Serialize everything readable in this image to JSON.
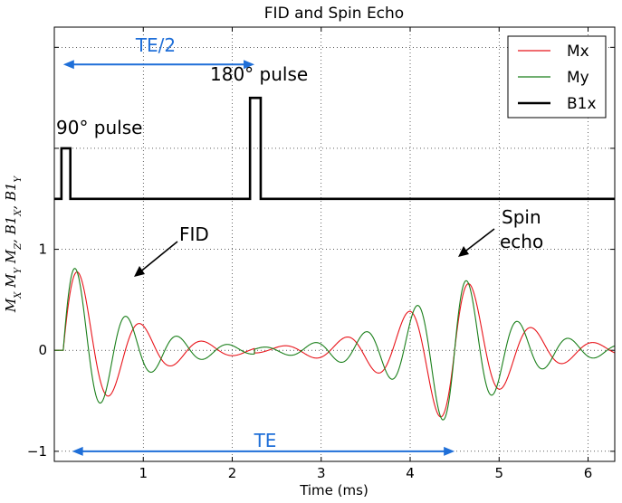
{
  "chart_data": {
    "type": "line",
    "title": "FID and Spin Echo",
    "xlabel": "Time (ms)",
    "ylabel": "M_X  M_Y  M_Z , B1_X , B1_Y",
    "ylabel_parts": [
      "M",
      "X",
      " M",
      "Y",
      " M",
      "Z",
      ", B1",
      "X",
      ", B1",
      "Y"
    ],
    "xlim": [
      0,
      6.3
    ],
    "ylim": [
      -1.1,
      3.2
    ],
    "grid": true,
    "legend_position": "top-right",
    "x_ticks": [
      {
        "value": 1,
        "label": "1"
      },
      {
        "value": 2,
        "label": "2"
      },
      {
        "value": 3,
        "label": "3"
      },
      {
        "value": 4,
        "label": "4"
      },
      {
        "value": 5,
        "label": "5"
      },
      {
        "value": 6,
        "label": "6"
      }
    ],
    "y_ticks": [
      {
        "value": -1,
        "label": "−1"
      },
      {
        "value": 0,
        "label": "0"
      },
      {
        "value": 1,
        "label": "1"
      }
    ],
    "y_grid_only": [
      2,
      3
    ],
    "series": [
      {
        "name": "Mx",
        "color": "#e8141a",
        "width": 1.1
      },
      {
        "name": "My",
        "color": "#1a7f1a",
        "width": 1.1
      },
      {
        "name": "B1x",
        "color": "#000000",
        "width": 2.6
      }
    ],
    "signal_model": {
      "decay_ms": 0.65,
      "fid_start_ms": 0.1,
      "echo_center_ms": 4.5,
      "mx_omega_rad_per_ms": 9.0,
      "my_omega_rad_per_ms": 11.0
    },
    "b1x_pulse_train": {
      "baseline": 1.5,
      "points": [
        [
          0.0,
          1.5
        ],
        [
          0.08,
          1.5
        ],
        [
          0.08,
          2.0
        ],
        [
          0.18,
          2.0
        ],
        [
          0.18,
          1.5
        ],
        [
          2.2,
          1.5
        ],
        [
          2.2,
          2.5
        ],
        [
          2.32,
          2.5
        ],
        [
          2.32,
          1.5
        ],
        [
          6.3,
          1.5
        ]
      ]
    },
    "annotations": {
      "pulse90": {
        "text": "90° pulse",
        "color": "#000000"
      },
      "pulse180": {
        "text": "180° pulse",
        "color": "#000000"
      },
      "te_half": {
        "text": "TE/2",
        "color": "#1f6fd8",
        "x_from": 0.1,
        "x_to": 2.25,
        "y": 2.83
      },
      "te": {
        "text": "TE",
        "color": "#1f6fd8",
        "x_from": 0.2,
        "x_to": 4.5,
        "y": -1.0
      },
      "fid": {
        "text": "FID",
        "color": "#000000"
      },
      "spin_echo": {
        "lines": [
          "Spin",
          "echo"
        ],
        "color": "#000000"
      }
    }
  }
}
